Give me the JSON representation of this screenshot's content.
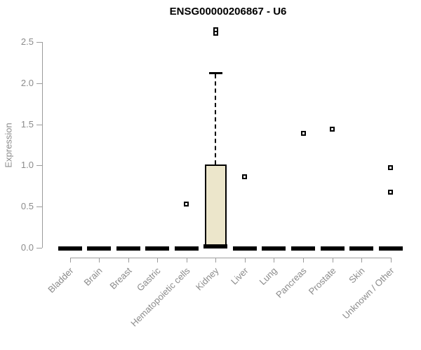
{
  "chart_data": {
    "type": "boxplot",
    "title": "ENSG00000206867 - U6",
    "xlabel": "",
    "ylabel": "Expression",
    "ylim": [
      0,
      2.65
    ],
    "yticks": [
      0.0,
      0.5,
      1.0,
      1.5,
      2.0,
      2.5
    ],
    "grid": false,
    "legend": "none",
    "categories": [
      "Bladder",
      "Brain",
      "Breast",
      "Gastric",
      "Hematopoietic cells",
      "Kidney",
      "Liver",
      "Lung",
      "Pancreas",
      "Prostate",
      "Skin",
      "Unknown / Other"
    ],
    "series": [
      {
        "name": "Bladder",
        "median": 0,
        "q1": 0,
        "q3": 0,
        "whisker_low": 0,
        "whisker_high": 0,
        "outliers": []
      },
      {
        "name": "Brain",
        "median": 0,
        "q1": 0,
        "q3": 0,
        "whisker_low": 0,
        "whisker_high": 0,
        "outliers": []
      },
      {
        "name": "Breast",
        "median": 0,
        "q1": 0,
        "q3": 0,
        "whisker_low": 0,
        "whisker_high": 0,
        "outliers": []
      },
      {
        "name": "Gastric",
        "median": 0,
        "q1": 0,
        "q3": 0,
        "whisker_low": 0,
        "whisker_high": 0,
        "outliers": []
      },
      {
        "name": "Hematopoietic cells",
        "median": 0,
        "q1": 0,
        "q3": 0,
        "whisker_low": 0,
        "whisker_high": 0,
        "outliers": [
          0.53
        ]
      },
      {
        "name": "Kidney",
        "median": 0.02,
        "q1": 0.02,
        "q3": 1.01,
        "whisker_low": 0.02,
        "whisker_high": 2.13,
        "outliers": [
          2.61,
          2.65
        ]
      },
      {
        "name": "Liver",
        "median": 0,
        "q1": 0,
        "q3": 0,
        "whisker_low": 0,
        "whisker_high": 0,
        "outliers": [
          0.86
        ]
      },
      {
        "name": "Lung",
        "median": 0,
        "q1": 0,
        "q3": 0,
        "whisker_low": 0,
        "whisker_high": 0,
        "outliers": []
      },
      {
        "name": "Pancreas",
        "median": 0,
        "q1": 0,
        "q3": 0,
        "whisker_low": 0,
        "whisker_high": 0,
        "outliers": [
          1.39
        ]
      },
      {
        "name": "Prostate",
        "median": 0,
        "q1": 0,
        "q3": 0,
        "whisker_low": 0,
        "whisker_high": 0,
        "outliers": [
          1.44
        ]
      },
      {
        "name": "Skin",
        "median": 0,
        "q1": 0,
        "q3": 0,
        "whisker_low": 0,
        "whisker_high": 0,
        "outliers": []
      },
      {
        "name": "Unknown / Other",
        "median": 0,
        "q1": 0,
        "q3": 0,
        "whisker_low": 0,
        "whisker_high": 0,
        "outliers": [
          0.68,
          0.97
        ]
      }
    ],
    "colors": {
      "box_fill": "#ece6cb",
      "box_border": "#000000",
      "median_line": "#000000",
      "outlier": "#000000",
      "axis": "#9b9b9b",
      "tick_text": "#8b8b8b",
      "title_text": "#000000"
    }
  }
}
